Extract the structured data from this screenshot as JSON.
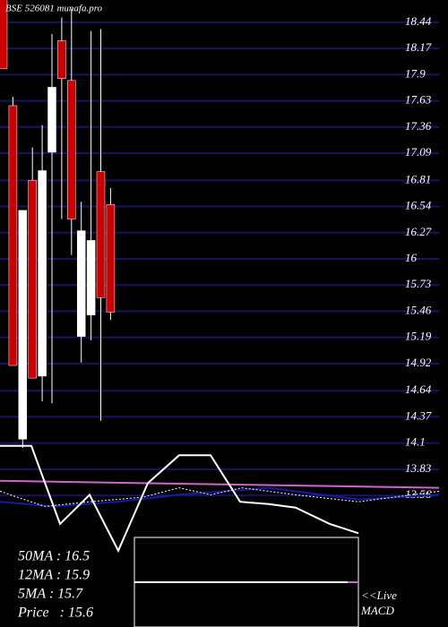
{
  "chart_data": [
    {
      "type": "candlestick",
      "title": "BSE 526081 munafa.pro",
      "categories": [
        null,
        null,
        null,
        null,
        null,
        null,
        null,
        null,
        null,
        null,
        null,
        null
      ],
      "open": [
        18.9,
        17.58,
        14.14,
        16.81,
        14.79,
        17.1,
        18.25,
        17.84,
        15.2,
        15.42,
        16.9,
        16.56
      ],
      "high": [
        19.0,
        17.67,
        16.5,
        17.15,
        17.38,
        18.32,
        18.49,
        18.58,
        16.59,
        18.35,
        18.37,
        16.73
      ],
      "low": [
        17.96,
        14.9,
        14.05,
        14.77,
        14.53,
        14.51,
        16.41,
        16.04,
        14.93,
        15.16,
        14.33,
        15.37
      ],
      "close": [
        17.96,
        14.9,
        16.5,
        14.77,
        16.91,
        17.77,
        17.86,
        16.41,
        16.29,
        16.19,
        15.6,
        15.45
      ],
      "up_color": "#ffffff",
      "down_color": "#cc0000",
      "grid_color": "#16165e",
      "ylim": [
        13.45,
        18.67
      ],
      "yticks": [
        18.44,
        18.17,
        17.9,
        17.63,
        17.36,
        17.09,
        16.81,
        16.54,
        16.27,
        16,
        15.73,
        15.46,
        15.19,
        14.92,
        14.64,
        14.37,
        14.1,
        13.83,
        13.56
      ],
      "annotations": [
        "50MA : 16.5",
        "12MA : 15.9",
        "5MA : 15.7",
        "Price   : 15.6"
      ],
      "macd_label": [
        "<<Live",
        "MACD"
      ]
    },
    {
      "type": "line",
      "xlim": [
        0,
        500
      ],
      "ylim": [
        0,
        100
      ],
      "series": [
        {
          "color": "#cc66cc",
          "x": [
            0,
            490
          ],
          "values": [
            64,
            58
          ],
          "style": "solid"
        },
        {
          "color": "#1a1aa0",
          "x": [
            0,
            60,
            130,
            200,
            300,
            400,
            490
          ],
          "values": [
            46,
            42,
            46,
            52,
            58,
            48,
            52
          ],
          "style": "solid"
        },
        {
          "color": "#ffffff",
          "x": [
            0,
            50,
            100,
            160,
            200,
            235,
            270,
            330,
            400,
            490
          ],
          "values": [
            55,
            42,
            46,
            50,
            58,
            52,
            58,
            52,
            46,
            55
          ],
          "style": "dotted"
        },
        {
          "color": "#ffffff",
          "x": [
            0,
            35,
            67,
            100,
            132,
            165,
            200,
            235,
            268,
            300,
            330,
            368,
            400
          ],
          "values": [
            94,
            94,
            27,
            52,
            4,
            62,
            86,
            86,
            46,
            44,
            41,
            27,
            19
          ],
          "style": "solid"
        }
      ]
    }
  ]
}
